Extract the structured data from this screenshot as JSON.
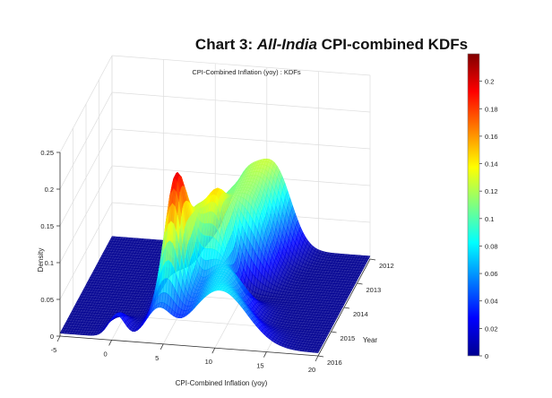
{
  "chart_data": {
    "type": "surface",
    "title_prefix": "Chart 3: ",
    "title_italic": "All-India",
    "title_suffix": " CPI-combined KDFs",
    "subtitle": "CPI-Combined Inflation (yoy) : KDFs",
    "xlabel": "CPI-Combined Inflation (yoy)",
    "ylabel": "Year",
    "zlabel": "Density",
    "xlim": [
      -5,
      20
    ],
    "xticks": [
      -5,
      0,
      5,
      10,
      15,
      20
    ],
    "yticks": [
      2012,
      2013,
      2014,
      2015,
      2016
    ],
    "zlim": [
      0,
      0.25
    ],
    "zticks": [
      0,
      0.05,
      0.1,
      0.15,
      0.2,
      0.25
    ],
    "zticklabels": [
      "0",
      "0.05",
      "0.1",
      "0.15",
      "0.2",
      "0.25"
    ],
    "colormap": "jet",
    "colorbar": {
      "range": [
        0,
        0.22
      ],
      "ticks": [
        0,
        0.02,
        0.04,
        0.06,
        0.08,
        0.1,
        0.12,
        0.14,
        0.16,
        0.18,
        0.2
      ],
      "ticklabels": [
        "0",
        "0.02",
        "0.04",
        "0.06",
        "0.08",
        "0.1",
        "0.12",
        "0.14",
        "0.16",
        "0.18",
        "0.2"
      ]
    },
    "grid": true,
    "estimated_kernel_components": [
      {
        "year": 2012,
        "components": [
          {
            "mean": 10.8,
            "sd": 1.6,
            "peak": 0.105
          },
          {
            "mean": 7.8,
            "sd": 1.5,
            "peak": 0.085
          }
        ]
      },
      {
        "year": 2013,
        "components": [
          {
            "mean": 9.8,
            "sd": 1.5,
            "peak": 0.1
          },
          {
            "mean": 7.0,
            "sd": 1.3,
            "peak": 0.08
          }
        ]
      },
      {
        "year": 2014,
        "components": [
          {
            "mean": 7.8,
            "sd": 1.2,
            "peak": 0.13
          },
          {
            "mean": 5.2,
            "sd": 1.2,
            "peak": 0.1
          }
        ]
      },
      {
        "year": 2015,
        "components": [
          {
            "mean": 5.0,
            "sd": 1.0,
            "peak": 0.19
          },
          {
            "mean": 9.5,
            "sd": 2.0,
            "peak": 0.07
          }
        ]
      },
      {
        "year": 2016,
        "components": [
          {
            "mean": 10.5,
            "sd": 2.6,
            "peak": 0.075
          },
          {
            "mean": 0.5,
            "sd": 0.8,
            "peak": 0.03
          },
          {
            "mean": 4.5,
            "sd": 1.2,
            "peak": 0.04
          }
        ]
      }
    ]
  }
}
